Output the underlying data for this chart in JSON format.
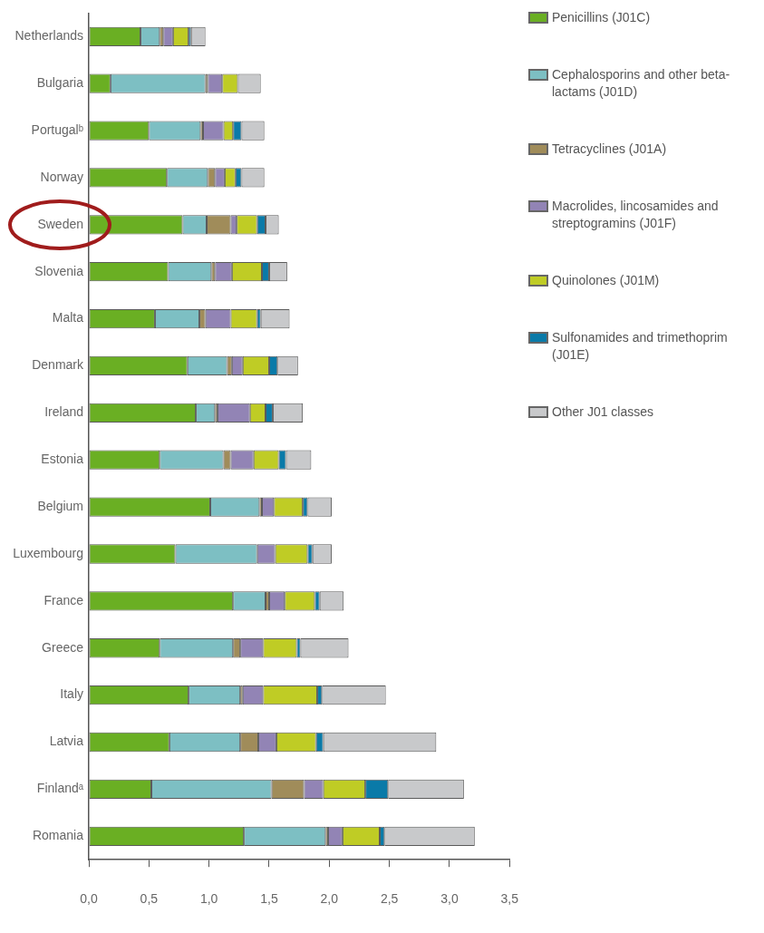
{
  "chart_data": {
    "type": "bar",
    "orientation": "horizontal",
    "stacked": true,
    "legend": "top right",
    "grid": false,
    "categories": [
      "Netherlands",
      "Bulgaria",
      "Portugalᵇ",
      "Norway",
      "Sweden",
      "Slovenia",
      "Malta",
      "Denmark",
      "Ireland",
      "Estonia",
      "Belgium",
      "Luxembourg",
      "France",
      "Greece",
      "Italy",
      "Latvia",
      "Finlandᵃ",
      "Romania"
    ],
    "xlim": [
      0,
      3.5
    ],
    "xticks": [
      {
        "value": 0,
        "label": "0,0"
      },
      {
        "value": 0.5,
        "label": "0,5"
      },
      {
        "value": 1,
        "label": "1,0"
      },
      {
        "value": 1.5,
        "label": "1,5"
      },
      {
        "value": 2,
        "label": "2,0"
      },
      {
        "value": 2.5,
        "label": "2,5"
      },
      {
        "value": 3,
        "label": "3,0"
      },
      {
        "value": 3.5,
        "label": "3,5"
      }
    ],
    "series": [
      {
        "name": "Penicillins (J01C)",
        "color": "#6aaf23",
        "values": [
          0.43,
          0.18,
          0.5,
          0.65,
          0.78,
          0.66,
          0.55,
          0.82,
          0.89,
          0.59,
          1.01,
          0.72,
          1.2,
          0.59,
          0.83,
          0.67,
          0.52,
          1.29
        ]
      },
      {
        "name": "Cephalosporins and other beta-lactams (J01D)",
        "color": "#7dbfc3",
        "values": [
          0.16,
          0.79,
          0.43,
          0.34,
          0.2,
          0.36,
          0.37,
          0.33,
          0.16,
          0.53,
          0.41,
          0.68,
          0.27,
          0.61,
          0.43,
          0.59,
          1.0,
          0.68
        ]
      },
      {
        "name": "Tetracyclines (J01A)",
        "color": "#a08c5a",
        "values": [
          0.03,
          0.02,
          0.02,
          0.06,
          0.2,
          0.03,
          0.05,
          0.04,
          0.02,
          0.06,
          0.02,
          0,
          0.03,
          0.06,
          0.02,
          0.15,
          0.27,
          0.02
        ]
      },
      {
        "name": "Macrolides, lincosamides and streptogramins (J01F)",
        "color": "#9284b5",
        "values": [
          0.08,
          0.12,
          0.17,
          0.08,
          0.05,
          0.14,
          0.21,
          0.09,
          0.27,
          0.19,
          0.1,
          0.15,
          0.13,
          0.19,
          0.17,
          0.15,
          0.16,
          0.12
        ]
      },
      {
        "name": "Quinolones (J01M)",
        "color": "#bfcc25",
        "values": [
          0.13,
          0.13,
          0.08,
          0.09,
          0.17,
          0.25,
          0.22,
          0.22,
          0.13,
          0.21,
          0.24,
          0.27,
          0.25,
          0.28,
          0.45,
          0.33,
          0.35,
          0.31
        ]
      },
      {
        "name": "Sulfonamides and trimethoprim (J01E)",
        "color": "#0a7aa8",
        "values": [
          0.02,
          0,
          0.07,
          0.05,
          0.07,
          0.06,
          0.03,
          0.07,
          0.06,
          0.06,
          0.04,
          0.04,
          0.04,
          0.03,
          0.04,
          0.06,
          0.19,
          0.04
        ]
      },
      {
        "name": "Other J01 classes",
        "color": "#c8c9cb",
        "values": [
          0.12,
          0.19,
          0.19,
          0.19,
          0.11,
          0.15,
          0.24,
          0.17,
          0.25,
          0.21,
          0.2,
          0.16,
          0.2,
          0.4,
          0.53,
          0.94,
          0.63,
          0.75
        ]
      }
    ]
  }
}
